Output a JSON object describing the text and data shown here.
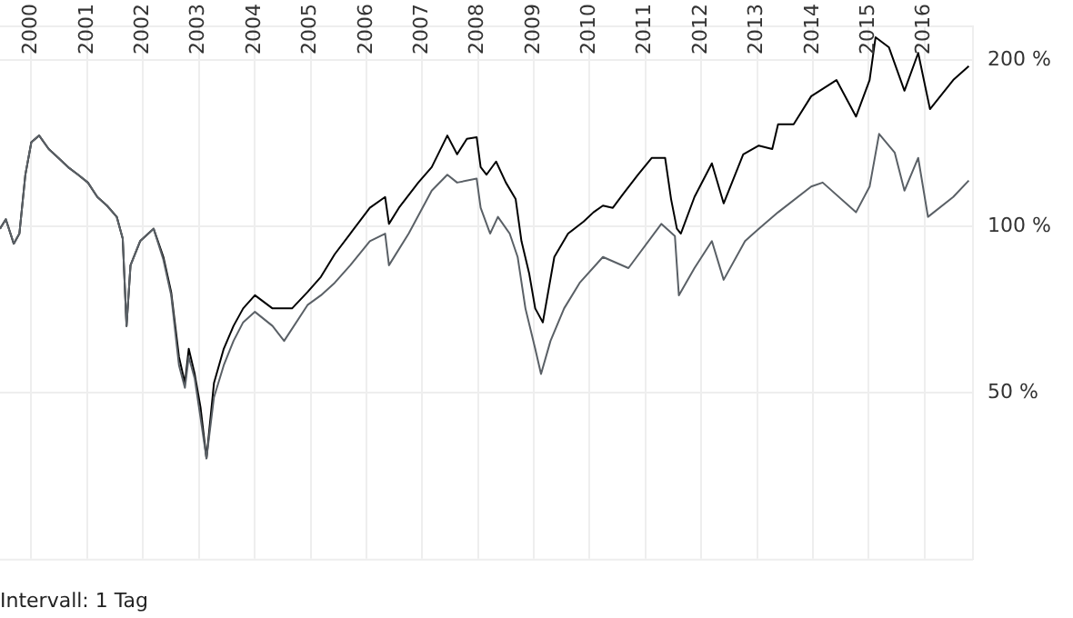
{
  "chart_data": {
    "type": "line",
    "log": "y",
    "grid": true,
    "legend": false,
    "marker": "none",
    "line_style": "solid",
    "xlim": [
      "1999-06-10",
      "2016-11-14"
    ],
    "xticks": [
      {
        "value": "2000",
        "label": "2000"
      },
      {
        "value": "2001",
        "label": "2001"
      },
      {
        "value": "2002",
        "label": "2002"
      },
      {
        "value": "2003",
        "label": "2003"
      },
      {
        "value": "2004",
        "label": "2004"
      },
      {
        "value": "2005",
        "label": "2005"
      },
      {
        "value": "2006",
        "label": "2006"
      },
      {
        "value": "2007",
        "label": "2007"
      },
      {
        "value": "2008",
        "label": "2008"
      },
      {
        "value": "2009",
        "label": "2009"
      },
      {
        "value": "2010",
        "label": "2010"
      },
      {
        "value": "2011",
        "label": "2011"
      },
      {
        "value": "2012",
        "label": "2012"
      },
      {
        "value": "2013",
        "label": "2013"
      },
      {
        "value": "2014",
        "label": "2014"
      },
      {
        "value": "2015",
        "label": "2015"
      },
      {
        "value": "2016",
        "label": "2016"
      }
    ],
    "ylim": [
      25,
      230
    ],
    "yticks": [
      {
        "value": 50,
        "label": "50 %"
      },
      {
        "value": 100,
        "label": "100 %"
      },
      {
        "value": 200,
        "label": "200 %"
      }
    ],
    "annotations": [
      "Intervall: 1 Tag"
    ],
    "series": [
      {
        "color": "#5a6066",
        "x": [
          "1999-06-10",
          "1999-07-18",
          "1999-09-08",
          "1999-10-15",
          "1999-11-23",
          "2000-01-01",
          "2000-02-21",
          "2000-04-24",
          "2000-06-26",
          "2000-08-28",
          "2000-11-02",
          "2001-01-05",
          "2001-03-08",
          "2001-05-10",
          "2001-07-13",
          "2001-08-21",
          "2001-09-15",
          "2001-10-11",
          "2001-12-13",
          "2002-03-11",
          "2002-05-14",
          "2002-07-04",
          "2002-08-24",
          "2002-10-02",
          "2002-10-27",
          "2002-12-05",
          "2003-01-12",
          "2003-02-20",
          "2003-04-10",
          "2003-06-13",
          "2003-08-16",
          "2003-10-18",
          "2004-01-03",
          "2004-04-27",
          "2004-07-12",
          "2004-12-12",
          "2005-03-10",
          "2005-06-08",
          "2005-09-18",
          "2006-01-24",
          "2006-05-04",
          "2006-05-29",
          "2006-10-05",
          "2007-03-05",
          "2007-06-15",
          "2007-08-18",
          "2007-12-24",
          "2008-01-19",
          "2008-03-21",
          "2008-05-11",
          "2008-07-27",
          "2008-09-17",
          "2008-11-07",
          "2009-01-10",
          "2009-02-17",
          "2009-04-20",
          "2009-07-18",
          "2009-10-28",
          "2010-03-29",
          "2010-09-12",
          "2011-04-15",
          "2011-07-13",
          "2011-08-08",
          "2011-11-18",
          "2012-03-11",
          "2012-05-27",
          "2012-10-14",
          "2013-01-12",
          "2013-05-18",
          "2013-12-21",
          "2014-03-06",
          "2014-10-10",
          "2015-01-07",
          "2015-03-10",
          "2015-06-20",
          "2015-08-23",
          "2015-11-21",
          "2016-01-24",
          "2016-07-07",
          "2016-10-17"
        ],
        "values": [
          99,
          103,
          93,
          97,
          124,
          142,
          146,
          138,
          133,
          128,
          124,
          120,
          113,
          109,
          104,
          95,
          66,
          85,
          94,
          99,
          87,
          75,
          56,
          51,
          58,
          53,
          45,
          38,
          49,
          56,
          62,
          67,
          70,
          66,
          62,
          72,
          75,
          79,
          85,
          94,
          97,
          85,
          97,
          116,
          124,
          120,
          122,
          108,
          97,
          104,
          97,
          88,
          71,
          60,
          54,
          62,
          71,
          79,
          88,
          84,
          101,
          96,
          75,
          84,
          94,
          80,
          94,
          99,
          106,
          118,
          120,
          106,
          118,
          147,
          136,
          116,
          133,
          104,
          113,
          121
        ]
      },
      {
        "color": "#000000",
        "x": [
          "1999-06-10",
          "1999-07-18",
          "1999-09-08",
          "1999-10-15",
          "1999-11-23",
          "2000-01-01",
          "2000-02-21",
          "2000-04-24",
          "2000-06-26",
          "2000-08-28",
          "2000-11-02",
          "2001-01-05",
          "2001-03-08",
          "2001-05-10",
          "2001-07-13",
          "2001-08-21",
          "2001-09-15",
          "2001-10-11",
          "2001-12-13",
          "2002-03-11",
          "2002-05-14",
          "2002-07-04",
          "2002-08-24",
          "2002-10-02",
          "2002-10-27",
          "2002-12-05",
          "2003-01-12",
          "2003-02-20",
          "2003-04-10",
          "2003-06-13",
          "2003-08-16",
          "2003-10-18",
          "2004-01-03",
          "2004-04-27",
          "2004-09-02",
          "2004-12-12",
          "2005-03-10",
          "2005-06-08",
          "2005-09-18",
          "2006-01-24",
          "2006-05-04",
          "2006-05-29",
          "2006-08-02",
          "2006-12-07",
          "2007-03-05",
          "2007-06-15",
          "2007-08-18",
          "2007-10-21",
          "2007-12-24",
          "2008-01-19",
          "2008-02-26",
          "2008-04-29",
          "2008-07-02",
          "2008-09-04",
          "2008-10-12",
          "2008-12-02",
          "2009-01-10",
          "2009-03-01",
          "2009-05-15",
          "2009-08-13",
          "2009-11-23",
          "2010-01-26",
          "2010-03-29",
          "2010-06-02",
          "2010-08-04",
          "2010-11-14",
          "2011-02-12",
          "2011-05-10",
          "2011-06-18",
          "2011-07-26",
          "2011-08-21",
          "2011-11-18",
          "2012-03-11",
          "2012-05-27",
          "2012-10-02",
          "2013-01-12",
          "2013-04-10",
          "2013-05-18",
          "2013-08-28",
          "2013-12-21",
          "2014-06-04",
          "2014-10-10",
          "2015-01-07",
          "2015-02-15",
          "2015-05-13",
          "2015-08-23",
          "2015-11-21",
          "2016-02-06",
          "2016-07-07",
          "2016-10-17"
        ],
        "values": [
          99,
          103,
          93,
          97,
          124,
          142,
          146,
          138,
          133,
          128,
          124,
          120,
          113,
          109,
          104,
          95,
          66,
          85,
          94,
          99,
          88,
          76,
          58,
          52,
          60,
          54,
          47,
          38,
          52,
          60,
          66,
          71,
          75,
          71,
          71,
          76,
          81,
          89,
          97,
          108,
          113,
          101,
          108,
          120,
          128,
          146,
          135,
          144,
          145,
          128,
          124,
          131,
          120,
          112,
          94,
          82,
          71,
          67,
          88,
          97,
          102,
          106,
          109,
          108,
          114,
          124,
          133,
          133,
          112,
          99,
          97,
          113,
          130,
          110,
          135,
          140,
          138,
          153,
          153,
          172,
          184,
          158,
          184,
          220,
          211,
          176,
          206,
          163,
          184,
          195
        ]
      }
    ]
  }
}
